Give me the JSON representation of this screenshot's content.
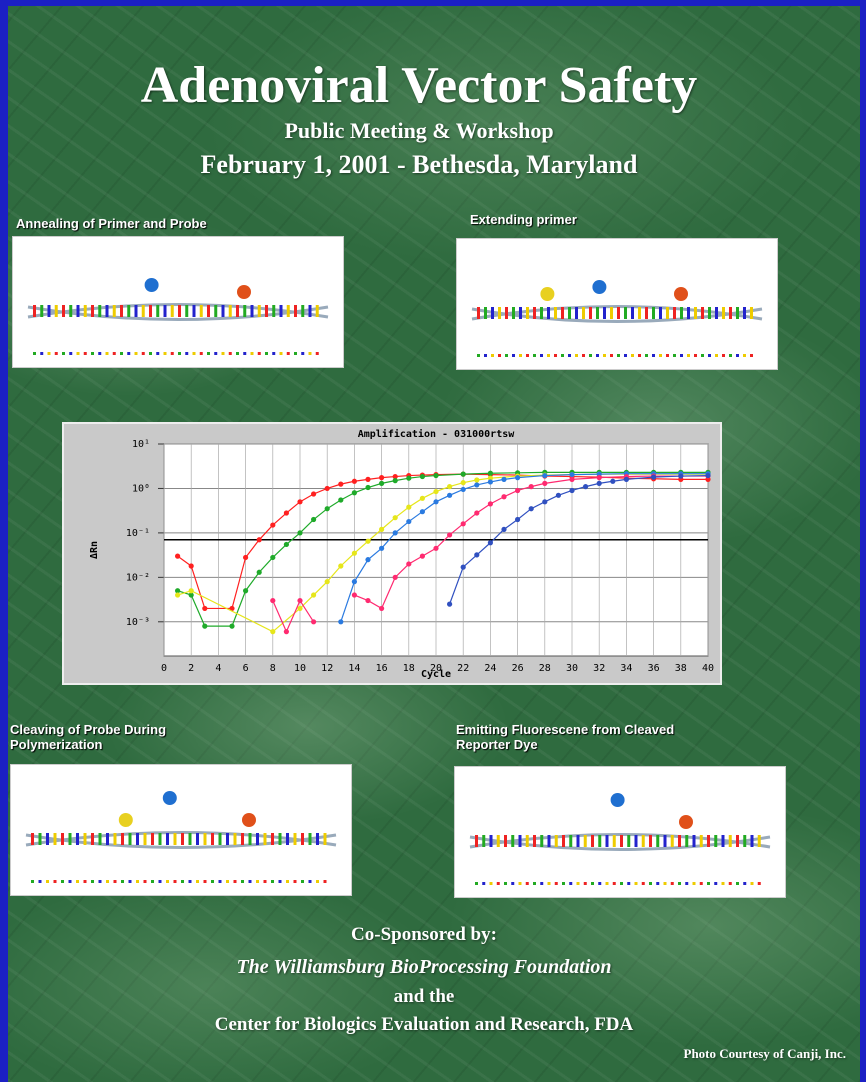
{
  "header": {
    "title": "Adenoviral Vector Safety",
    "subtitle": "Public Meeting & Workshop",
    "date_location": "February 1, 2001 -  Bethesda, Maryland"
  },
  "panels": [
    {
      "caption": "Annealing of Primer and Probe"
    },
    {
      "caption": "Extending primer"
    },
    {
      "caption": "Cleaving of Probe During Polymerization"
    },
    {
      "caption": "Emitting Fluorescene from Cleaved Reporter Dye"
    }
  ],
  "chart_data": {
    "type": "line",
    "title": "Amplification - 031000rtsw",
    "x_label": "Cycle",
    "y_label": "ΔRn",
    "log_y": true,
    "grid": true,
    "xlim": [
      0,
      40
    ],
    "xticks": [
      0,
      2,
      4,
      6,
      8,
      10,
      12,
      14,
      16,
      18,
      20,
      22,
      24,
      26,
      28,
      30,
      32,
      34,
      36,
      38,
      40
    ],
    "ylim": [
      0.00017,
      10
    ],
    "yticks": [
      {
        "value": 10,
        "label": "10¹"
      },
      {
        "value": 1,
        "label": "10⁰"
      },
      {
        "value": 0.1,
        "label": "10⁻¹"
      },
      {
        "value": 0.01,
        "label": "10⁻²"
      },
      {
        "value": 0.001,
        "label": "10⁻³"
      }
    ],
    "threshold": 0.07,
    "series": [
      {
        "color": "#ff2020",
        "x": [
          1,
          2,
          3,
          5,
          6,
          7,
          8,
          9,
          10,
          11,
          12,
          13,
          14,
          15,
          16,
          17,
          18,
          19,
          20,
          22,
          24,
          26,
          28,
          30,
          32,
          34,
          36,
          38,
          40
        ],
        "values": [
          0.03,
          0.018,
          0.002,
          0.002,
          0.028,
          0.07,
          0.15,
          0.28,
          0.5,
          0.75,
          1.0,
          1.25,
          1.45,
          1.6,
          1.75,
          1.85,
          1.95,
          2.0,
          2.05,
          2.1,
          2.05,
          2.0,
          1.9,
          1.85,
          1.8,
          1.7,
          1.65,
          1.6,
          1.6
        ]
      },
      {
        "color": "#1faa2a",
        "x": [
          1,
          2,
          3,
          5,
          6,
          7,
          8,
          9,
          10,
          11,
          12,
          13,
          14,
          15,
          16,
          17,
          18,
          19,
          20,
          22,
          24,
          26,
          28,
          30,
          32,
          34,
          36,
          38,
          40
        ],
        "values": [
          0.005,
          0.004,
          0.0008,
          0.0008,
          0.005,
          0.013,
          0.028,
          0.055,
          0.1,
          0.2,
          0.35,
          0.55,
          0.8,
          1.05,
          1.3,
          1.5,
          1.7,
          1.85,
          1.95,
          2.1,
          2.2,
          2.25,
          2.3,
          2.3,
          2.3,
          2.3,
          2.3,
          2.3,
          2.3
        ]
      },
      {
        "color": "#e6e61a",
        "x": [
          1,
          2,
          8,
          10,
          11,
          12,
          13,
          14,
          15,
          16,
          17,
          18,
          19,
          20,
          21,
          22,
          23,
          24,
          26,
          28,
          30,
          32,
          34,
          36,
          38,
          40
        ],
        "values": [
          0.004,
          0.005,
          0.0006,
          0.002,
          0.004,
          0.008,
          0.018,
          0.035,
          0.065,
          0.12,
          0.22,
          0.38,
          0.6,
          0.85,
          1.1,
          1.35,
          1.55,
          1.7,
          1.9,
          2.0,
          2.05,
          2.1,
          2.1,
          2.1,
          2.1,
          2.1
        ]
      },
      {
        "color": "#2a7ae0",
        "x": [
          13,
          14,
          15,
          16,
          17,
          18,
          19,
          20,
          21,
          22,
          23,
          24,
          25,
          26,
          28,
          30,
          32,
          34,
          36,
          38,
          40
        ],
        "values": [
          0.001,
          0.008,
          0.025,
          0.045,
          0.1,
          0.18,
          0.3,
          0.5,
          0.7,
          0.95,
          1.2,
          1.4,
          1.6,
          1.75,
          1.95,
          2.05,
          2.1,
          2.15,
          2.15,
          2.15,
          2.15
        ]
      },
      {
        "color": "#ff2a70",
        "x": [
          8,
          9,
          10,
          11,
          12,
          13,
          14,
          15,
          16,
          17,
          18,
          19,
          20,
          21,
          22,
          23,
          24,
          25,
          26,
          27,
          28,
          30,
          32,
          34,
          36,
          38,
          40
        ],
        "values": [
          0.003,
          0.0006,
          0.003,
          0.001,
          null,
          null,
          0.004,
          0.003,
          0.002,
          0.01,
          0.02,
          0.03,
          0.045,
          0.09,
          0.16,
          0.28,
          0.45,
          0.65,
          0.9,
          1.1,
          1.3,
          1.6,
          1.75,
          1.85,
          1.9,
          1.9,
          1.9
        ]
      },
      {
        "color": "#3050c0",
        "x": [
          21,
          22,
          23,
          24,
          25,
          26,
          27,
          28,
          29,
          30,
          31,
          32,
          33,
          34,
          36,
          38,
          40
        ],
        "values": [
          0.0025,
          0.017,
          0.032,
          0.06,
          0.12,
          0.2,
          0.35,
          0.5,
          0.7,
          0.9,
          1.1,
          1.3,
          1.45,
          1.6,
          1.8,
          1.9,
          1.95
        ]
      }
    ]
  },
  "footer": {
    "cosponsored": "Co-Sponsored by:",
    "org1": "The Williamsburg BioProcessing Foundation",
    "and": "and the",
    "org2": "Center for Biologics Evaluation and Research, FDA",
    "credit": "Photo Courtesy of Canji, Inc."
  }
}
